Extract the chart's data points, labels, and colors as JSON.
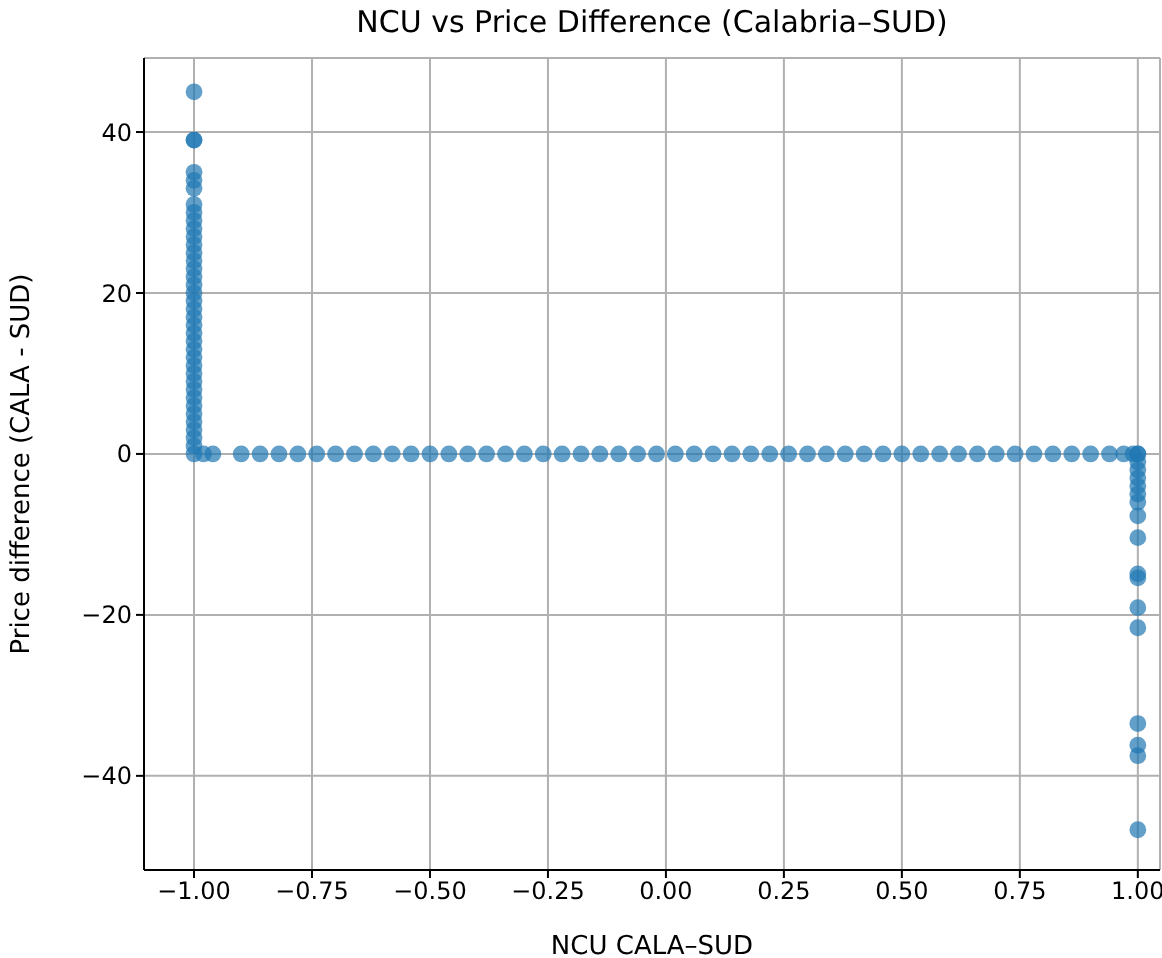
{
  "chart_data": {
    "type": "scatter",
    "title": "NCU vs Price Difference (Calabria–SUD)",
    "xlabel": "NCU CALA–SUD",
    "ylabel": "Price difference (CALA - SUD)",
    "xlim": [
      -1.106,
      1.047
    ],
    "ylim": [
      -51.7,
      49.2
    ],
    "xticks": [
      {
        "value": -1,
        "label": "−1.00"
      },
      {
        "value": -0.75,
        "label": "−0.75"
      },
      {
        "value": -0.5,
        "label": "−0.50"
      },
      {
        "value": -0.25,
        "label": "−0.25"
      },
      {
        "value": 0,
        "label": "0.00"
      },
      {
        "value": 0.25,
        "label": "0.25"
      },
      {
        "value": 0.5,
        "label": "0.50"
      },
      {
        "value": 0.75,
        "label": "0.75"
      },
      {
        "value": 1,
        "label": "1.00"
      }
    ],
    "yticks": [
      {
        "value": -40,
        "label": "−40"
      },
      {
        "value": -20,
        "label": "−20"
      },
      0,
      20,
      40
    ],
    "grid": true,
    "marker": "circle",
    "series": [
      {
        "color": "#1f77b4",
        "x": [
          -1,
          -1,
          -1,
          -1,
          -1,
          -1,
          -1,
          -1,
          -1,
          -1,
          -1,
          -1,
          -1,
          -1,
          -1,
          -1,
          -1,
          -1,
          -1,
          -1,
          -1,
          -1,
          -1,
          -1,
          -1,
          -1,
          -1,
          -1,
          -1,
          -1,
          -1,
          -1,
          -1,
          -1,
          -1,
          -1,
          -1,
          -1,
          -0.98,
          -0.96,
          -0.9,
          -0.86,
          -0.82,
          -0.78,
          -0.74,
          -0.7,
          -0.66,
          -0.62,
          -0.58,
          -0.54,
          -0.5,
          -0.46,
          -0.42,
          -0.38,
          -0.34,
          -0.3,
          -0.26,
          -0.22,
          -0.18,
          -0.14,
          -0.1,
          -0.06,
          -0.02,
          0.02,
          0.06,
          0.1,
          0.14,
          0.18,
          0.22,
          0.26,
          0.3,
          0.34,
          0.38,
          0.42,
          0.46,
          0.5,
          0.54,
          0.58,
          0.62,
          0.66,
          0.7,
          0.74,
          0.78,
          0.82,
          0.86,
          0.9,
          0.94,
          0.97,
          0.99,
          1,
          1,
          1,
          1,
          1,
          1,
          1,
          1,
          1,
          1,
          1,
          1,
          1,
          1,
          1,
          1,
          1,
          1
        ],
        "values": [
          45,
          39,
          39,
          35,
          34,
          33,
          31,
          30,
          29,
          28,
          27,
          26,
          25,
          24,
          23,
          22,
          21,
          20,
          19,
          18,
          17,
          16,
          15,
          14,
          13,
          12,
          11,
          10,
          9,
          8,
          7,
          6,
          5,
          4,
          3,
          2,
          1,
          0,
          0,
          0,
          0,
          0,
          0,
          0,
          0,
          0,
          0,
          0,
          0,
          0,
          0,
          0,
          0,
          0,
          0,
          0,
          0,
          0,
          0,
          0,
          0,
          0,
          0,
          0,
          0,
          0,
          0,
          0,
          0,
          0,
          0,
          0,
          0,
          0,
          0,
          0,
          0,
          0,
          0,
          0,
          0,
          0,
          0,
          0,
          0,
          0,
          0,
          0,
          0,
          0,
          0,
          -1,
          -2,
          -3,
          -4,
          -5,
          -6,
          -7.7,
          -10.4,
          -14.9,
          -15.4,
          -19.1,
          -21.6,
          -33.5,
          -36.2,
          -37.5,
          -46.7
        ]
      }
    ]
  }
}
